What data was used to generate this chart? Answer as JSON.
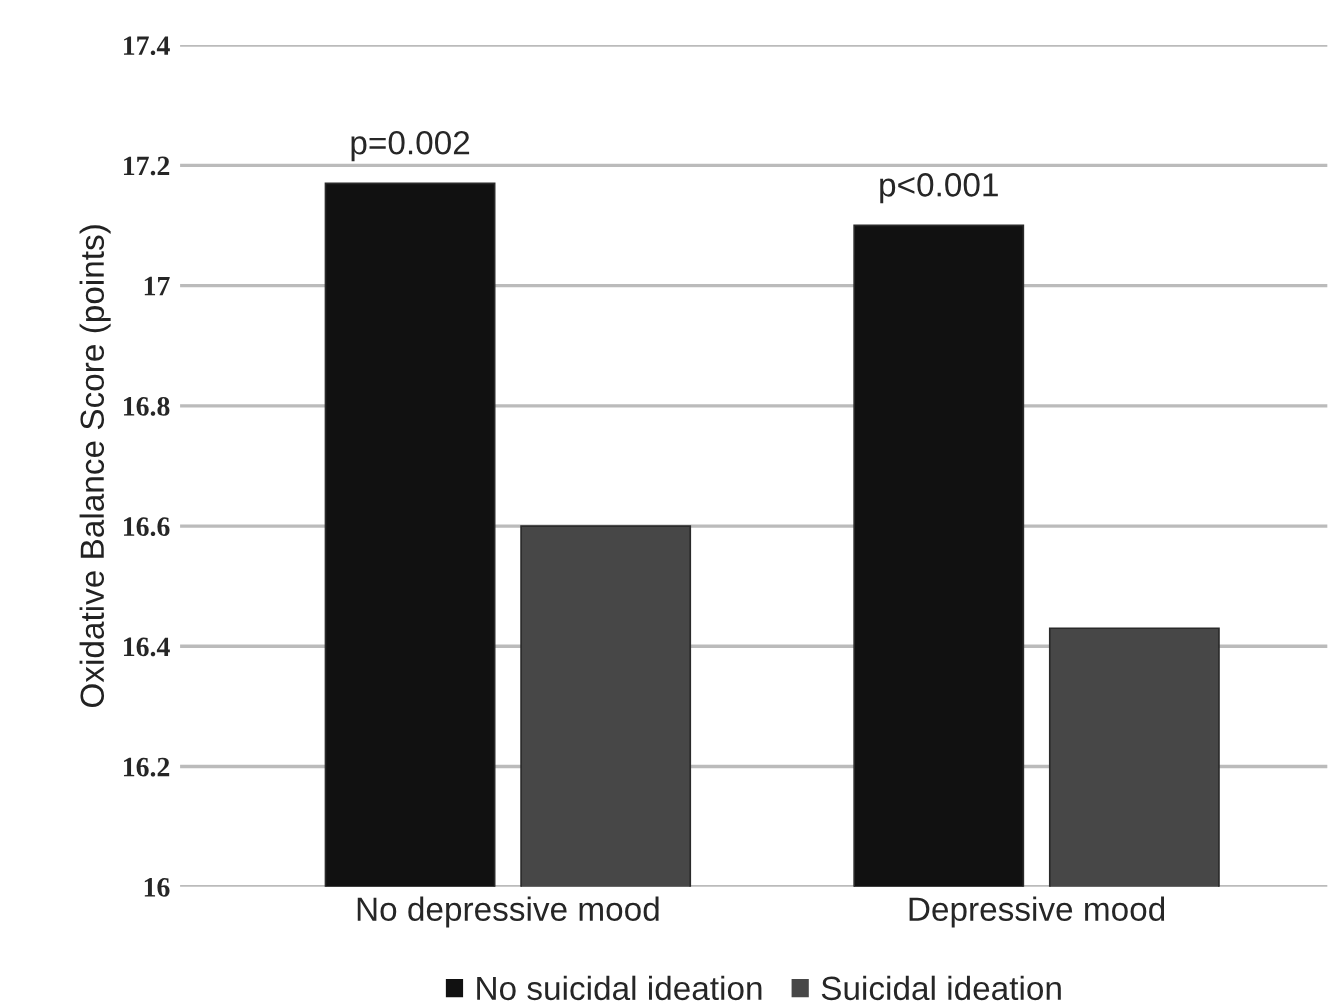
{
  "chart_data": {
    "type": "bar",
    "ylabel": "Oxidative Balance Score (points)",
    "categories": [
      "No depressive mood",
      "Depressive mood"
    ],
    "series": [
      {
        "name": "No suicidal ideation",
        "color": "#111111",
        "values": [
          17.17,
          17.1
        ]
      },
      {
        "name": "Suicidal ideation",
        "color": "#474747",
        "values": [
          16.6,
          16.43
        ]
      }
    ],
    "ylim": [
      16,
      17.4
    ],
    "yticks": [
      16,
      16.2,
      16.4,
      16.6,
      16.8,
      17,
      17.2,
      17.4
    ],
    "grid": "y",
    "legend": "bottom",
    "annotations": [
      "p=0.002",
      "p<0.001"
    ]
  }
}
